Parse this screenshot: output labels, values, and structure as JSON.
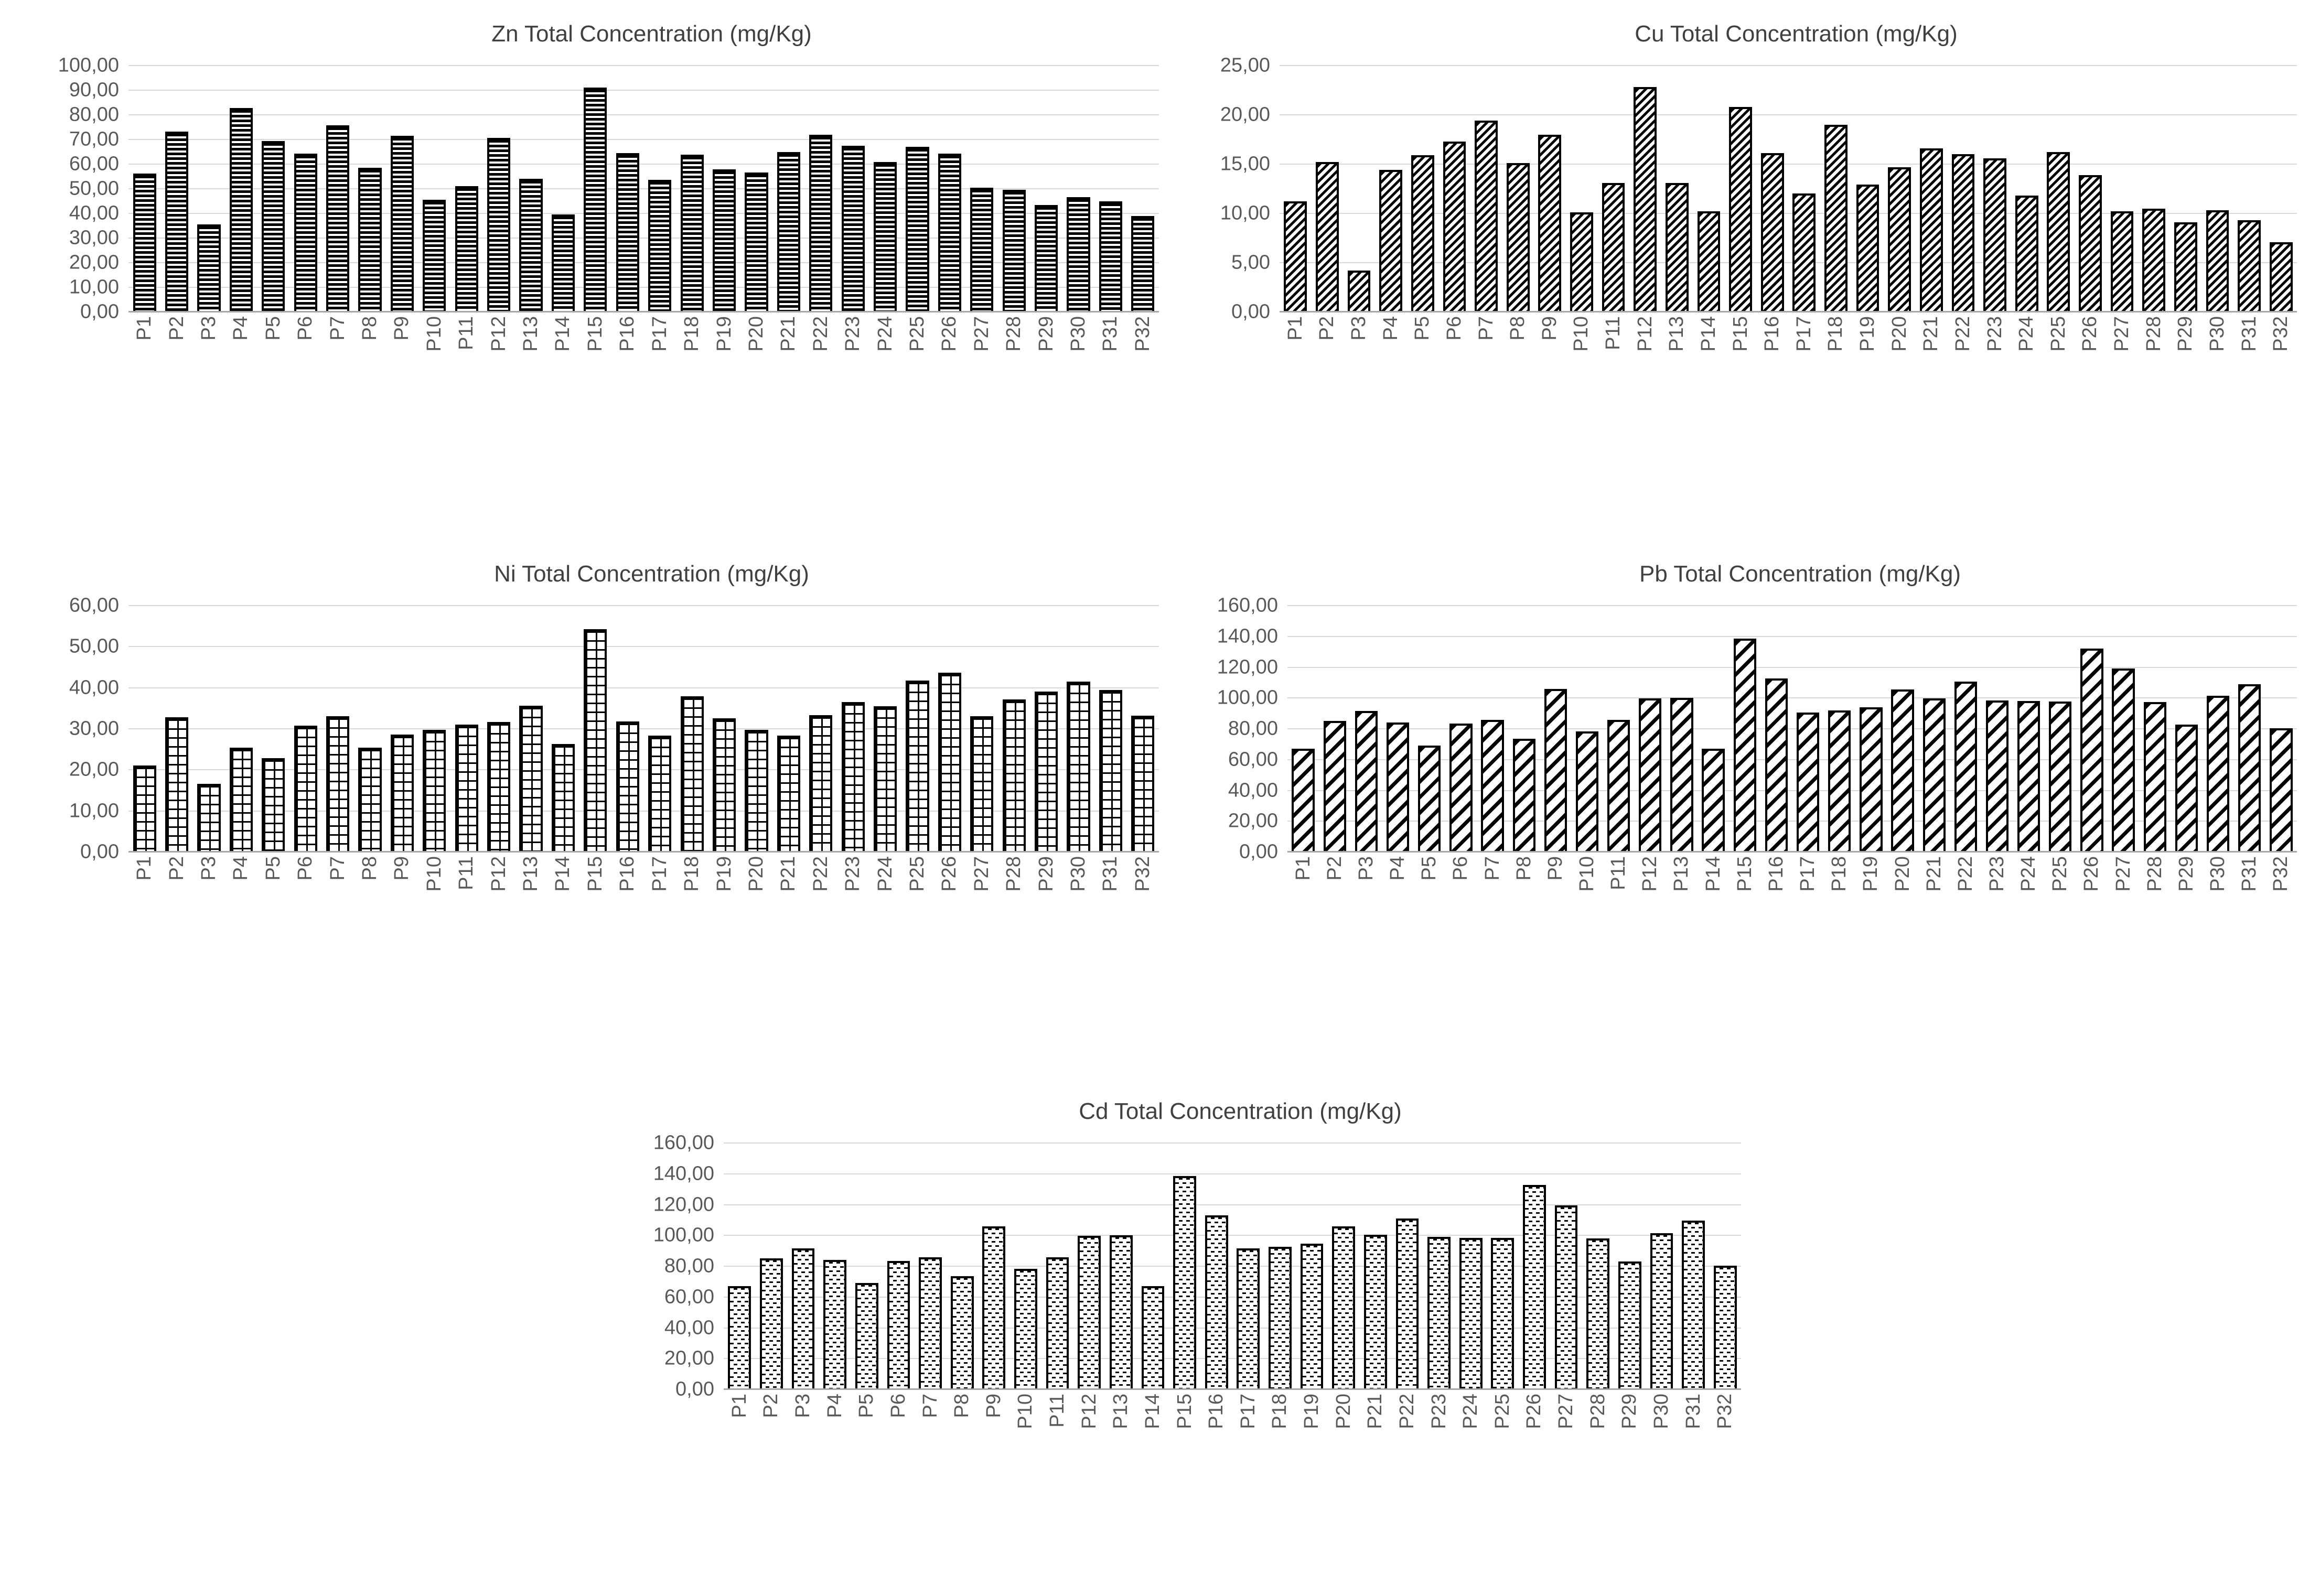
{
  "figure": {
    "description": "Five pattern-filled bar charts of total heavy-metal concentrations across soil sampling points",
    "background": "#ffffff"
  },
  "colors": {
    "bar_fill": "#000000",
    "bar_background": "#ffffff",
    "gridline": "#d9d9d9",
    "axis_line": "#a6a6a6",
    "tick_text": "#595959",
    "title_text": "#404040"
  },
  "axis_format": {
    "decimal_separator": ",",
    "decimals": 2
  },
  "categories": [
    "P1",
    "P2",
    "P3",
    "P4",
    "P5",
    "P6",
    "P7",
    "P8",
    "P9",
    "P10",
    "P11",
    "P12",
    "P13",
    "P14",
    "P15",
    "P16",
    "P17",
    "P18",
    "P19",
    "P20",
    "P21",
    "P22",
    "P23",
    "P24",
    "P25",
    "P26",
    "P27",
    "P28",
    "P29",
    "P30",
    "P31",
    "P32"
  ],
  "chart_data": [
    {
      "id": "zn",
      "type": "bar",
      "title": "Zn Total Concentration (mg/Kg)",
      "xlabel": "",
      "ylabel": "",
      "ylim": [
        0,
        100
      ],
      "ystep": 10,
      "grid": true,
      "legend": false,
      "pattern": "horizontal-stripes",
      "pattern_class": "p-hlines",
      "values": [
        56.2,
        73.3,
        35.6,
        82.8,
        69.4,
        64.2,
        75.7,
        58.6,
        71.5,
        45.5,
        51.0,
        70.6,
        54.0,
        39.6,
        91.0,
        64.5,
        53.6,
        63.8,
        57.8,
        56.5,
        64.8,
        71.9,
        67.4,
        60.8,
        67.0,
        64.3,
        50.5,
        49.5,
        43.4,
        46.5,
        45.0,
        39.0
      ]
    },
    {
      "id": "cu",
      "type": "bar",
      "title": "Cu Total Concentration (mg/Kg)",
      "xlabel": "",
      "ylabel": "",
      "ylim": [
        0,
        25
      ],
      "ystep": 5,
      "grid": true,
      "legend": false,
      "pattern": "thin-diagonal-hatch",
      "pattern_class": "p-diag-thin",
      "values": [
        11.2,
        15.2,
        4.2,
        14.4,
        15.9,
        17.3,
        19.4,
        15.1,
        18.0,
        10.1,
        13.1,
        22.8,
        13.1,
        10.2,
        20.8,
        16.1,
        12.0,
        19.0,
        12.9,
        14.7,
        16.6,
        16.0,
        15.6,
        11.8,
        16.2,
        13.9,
        10.2,
        10.5,
        9.1,
        10.3,
        9.3,
        7.1
      ]
    },
    {
      "id": "ni",
      "type": "bar",
      "title": "Ni Total Concentration (mg/Kg)",
      "xlabel": "",
      "ylabel": "",
      "ylim": [
        0,
        60
      ],
      "ystep": 10,
      "grid": true,
      "legend": false,
      "pattern": "square-grid",
      "pattern_class": "p-grid",
      "values": [
        21.1,
        32.8,
        16.6,
        25.4,
        22.8,
        30.8,
        33.1,
        25.4,
        28.6,
        29.8,
        31.0,
        31.7,
        35.6,
        26.3,
        54.2,
        31.8,
        28.4,
        37.9,
        32.6,
        29.7,
        28.4,
        33.3,
        36.5,
        35.5,
        41.7,
        43.6,
        33.1,
        37.2,
        39.1,
        41.5,
        39.4,
        33.2
      ]
    },
    {
      "id": "pb",
      "type": "bar",
      "title": "Pb Total Concentration (mg/Kg)",
      "xlabel": "",
      "ylabel": "",
      "ylim": [
        0,
        160
      ],
      "ystep": 20,
      "grid": true,
      "legend": false,
      "pattern": "wide-diagonal-hatch",
      "pattern_class": "p-diag-wide",
      "values": [
        67.0,
        85.2,
        91.5,
        84.2,
        69.0,
        83.4,
        85.8,
        73.4,
        105.8,
        78.4,
        85.8,
        99.9,
        100.2,
        67.0,
        138.5,
        112.8,
        90.7,
        92.0,
        93.9,
        105.4,
        99.9,
        110.7,
        98.4,
        97.9,
        97.8,
        132.2,
        119.1,
        97.4,
        82.8,
        101.4,
        109.1,
        80.3
      ]
    },
    {
      "id": "cd",
      "type": "bar",
      "title": "Cd Total Concentration (mg/Kg)",
      "xlabel": "",
      "ylabel": "",
      "ylim": [
        0,
        160
      ],
      "ystep": 20,
      "grid": true,
      "legend": false,
      "pattern": "offset-dashes",
      "pattern_class": "p-dashes",
      "values": [
        67.0,
        85.2,
        91.5,
        84.2,
        69.0,
        83.4,
        85.8,
        73.4,
        105.8,
        78.4,
        85.8,
        99.9,
        100.2,
        67.0,
        138.5,
        113.0,
        91.5,
        92.5,
        94.5,
        106.0,
        100.5,
        111.0,
        99.0,
        98.5,
        98.5,
        132.8,
        119.5,
        98.0,
        83.2,
        101.5,
        109.5,
        80.3
      ]
    }
  ]
}
